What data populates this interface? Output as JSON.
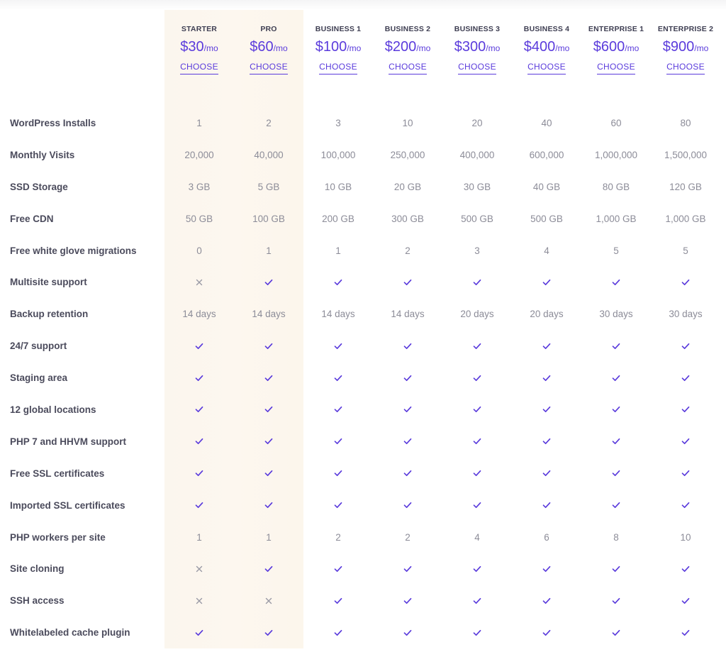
{
  "plans": [
    {
      "name": "STARTER",
      "price": "$30",
      "period": "/mo",
      "cta": "CHOOSE"
    },
    {
      "name": "PRO",
      "price": "$60",
      "period": "/mo",
      "cta": "CHOOSE"
    },
    {
      "name": "BUSINESS 1",
      "price": "$100",
      "period": "/mo",
      "cta": "CHOOSE"
    },
    {
      "name": "BUSINESS 2",
      "price": "$200",
      "period": "/mo",
      "cta": "CHOOSE"
    },
    {
      "name": "BUSINESS 3",
      "price": "$300",
      "period": "/mo",
      "cta": "CHOOSE"
    },
    {
      "name": "BUSINESS 4",
      "price": "$400",
      "period": "/mo",
      "cta": "CHOOSE"
    },
    {
      "name": "ENTERPRISE 1",
      "price": "$600",
      "period": "/mo",
      "cta": "CHOOSE"
    },
    {
      "name": "ENTERPRISE 2",
      "price": "$900",
      "period": "/mo",
      "cta": "CHOOSE"
    }
  ],
  "features": [
    {
      "label": "WordPress Installs",
      "values": [
        "1",
        "2",
        "3",
        "10",
        "20",
        "40",
        "60",
        "80"
      ]
    },
    {
      "label": "Monthly Visits",
      "values": [
        "20,000",
        "40,000",
        "100,000",
        "250,000",
        "400,000",
        "600,000",
        "1,000,000",
        "1,500,000"
      ]
    },
    {
      "label": "SSD Storage",
      "values": [
        "3 GB",
        "5 GB",
        "10 GB",
        "20 GB",
        "30 GB",
        "40 GB",
        "80 GB",
        "120 GB"
      ]
    },
    {
      "label": "Free CDN",
      "values": [
        "50 GB",
        "100 GB",
        "200 GB",
        "300 GB",
        "500 GB",
        "500 GB",
        "1,000 GB",
        "1,000 GB"
      ]
    },
    {
      "label": "Free white glove migrations",
      "values": [
        "0",
        "1",
        "1",
        "2",
        "3",
        "4",
        "5",
        "5"
      ]
    },
    {
      "label": "Multisite support",
      "values": [
        "cross-icon",
        "check-icon",
        "check-icon",
        "check-icon",
        "check-icon",
        "check-icon",
        "check-icon",
        "check-icon"
      ]
    },
    {
      "label": "Backup retention",
      "values": [
        "14 days",
        "14 days",
        "14 days",
        "14 days",
        "20 days",
        "20 days",
        "30 days",
        "30 days"
      ]
    },
    {
      "label": "24/7 support",
      "values": [
        "check-icon",
        "check-icon",
        "check-icon",
        "check-icon",
        "check-icon",
        "check-icon",
        "check-icon",
        "check-icon"
      ]
    },
    {
      "label": "Staging area",
      "values": [
        "check-icon",
        "check-icon",
        "check-icon",
        "check-icon",
        "check-icon",
        "check-icon",
        "check-icon",
        "check-icon"
      ]
    },
    {
      "label": "12 global locations",
      "values": [
        "check-icon",
        "check-icon",
        "check-icon",
        "check-icon",
        "check-icon",
        "check-icon",
        "check-icon",
        "check-icon"
      ]
    },
    {
      "label": "PHP 7 and HHVM support",
      "values": [
        "check-icon",
        "check-icon",
        "check-icon",
        "check-icon",
        "check-icon",
        "check-icon",
        "check-icon",
        "check-icon"
      ]
    },
    {
      "label": "Free SSL certificates",
      "values": [
        "check-icon",
        "check-icon",
        "check-icon",
        "check-icon",
        "check-icon",
        "check-icon",
        "check-icon",
        "check-icon"
      ]
    },
    {
      "label": "Imported SSL certificates",
      "values": [
        "check-icon",
        "check-icon",
        "check-icon",
        "check-icon",
        "check-icon",
        "check-icon",
        "check-icon",
        "check-icon"
      ]
    },
    {
      "label": "PHP workers per site",
      "values": [
        "1",
        "1",
        "2",
        "2",
        "4",
        "6",
        "8",
        "10"
      ]
    },
    {
      "label": "Site cloning",
      "values": [
        "cross-icon",
        "check-icon",
        "check-icon",
        "check-icon",
        "check-icon",
        "check-icon",
        "check-icon",
        "check-icon"
      ]
    },
    {
      "label": "SSH access",
      "values": [
        "cross-icon",
        "cross-icon",
        "check-icon",
        "check-icon",
        "check-icon",
        "check-icon",
        "check-icon",
        "check-icon"
      ]
    },
    {
      "label": "Whitelabeled cache plugin",
      "values": [
        "check-icon",
        "check-icon",
        "check-icon",
        "check-icon",
        "check-icon",
        "check-icon",
        "check-icon",
        "check-icon"
      ]
    }
  ],
  "colors": {
    "accent": "#5a3bdc",
    "highlight": "#fdf7ef",
    "cross": "#9a9aa5"
  }
}
